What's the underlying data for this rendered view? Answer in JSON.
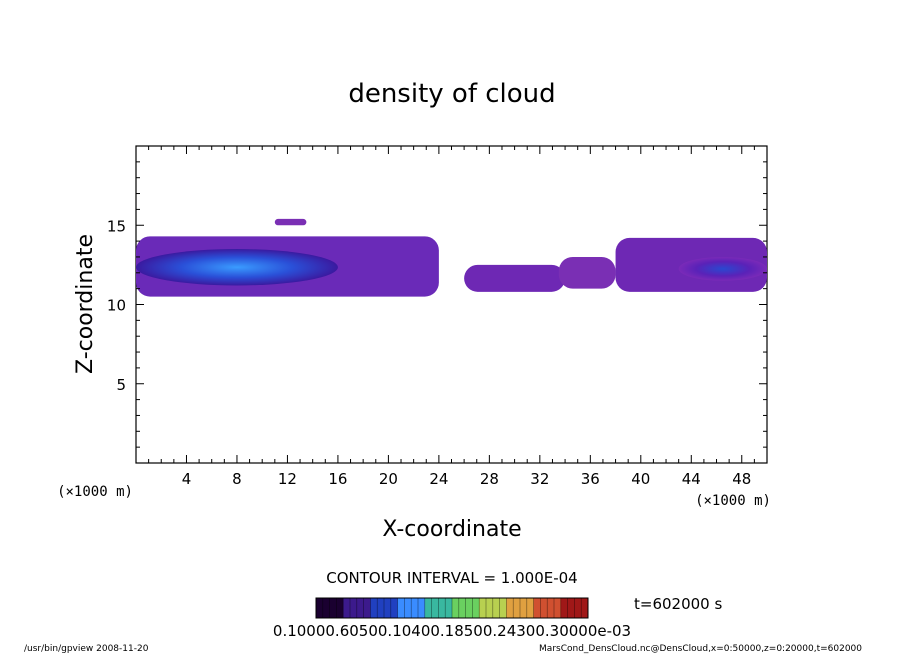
{
  "chart_data": {
    "type": "heatmap",
    "title": "density of cloud",
    "xlabel": "X-coordinate",
    "ylabel": "Z-coordinate",
    "x_unit": "(×1000 m)",
    "y_unit": "(×1000 m)",
    "xlim": [
      0,
      50
    ],
    "ylim": [
      0,
      20
    ],
    "x_ticks": [
      4,
      8,
      12,
      16,
      20,
      24,
      28,
      32,
      36,
      40,
      44,
      48
    ],
    "y_ticks": [
      5,
      10,
      15
    ],
    "contour_interval": "CONTOUR INTERVAL = 1.000E-04",
    "time": "t=602000 s",
    "colorbar_labels": "0.10000.60500.10400.18500.24300.30000e-03",
    "colorbar_colors": [
      "#1a0030",
      "#3c1a8c",
      "#2040c0",
      "#3a8cff",
      "#39b8a0",
      "#6ad060",
      "#b8d050",
      "#e0a040",
      "#d05030",
      "#a01818"
    ],
    "footer_left": "/usr/bin/gpview   2008-11-20",
    "footer_right": "MarsCond_DensCloud.nc@DensCloud,x=0:50000,z=0:20000,t=602000",
    "cloud_regions": [
      {
        "x": [
          0,
          24
        ],
        "z": [
          10.5,
          14.3
        ],
        "density": "high",
        "core_x": [
          0,
          16
        ],
        "core_z": [
          11.2,
          13.5
        ]
      },
      {
        "x": [
          11,
          13.5
        ],
        "z": [
          15,
          15.4
        ],
        "density": "low"
      },
      {
        "x": [
          26,
          34
        ],
        "z": [
          10.8,
          12.5
        ],
        "density": "medium"
      },
      {
        "x": [
          33.5,
          38
        ],
        "z": [
          11,
          13
        ],
        "density": "low"
      },
      {
        "x": [
          38,
          50
        ],
        "z": [
          10.8,
          14.2
        ],
        "density": "medium",
        "core_x": [
          43,
          50
        ],
        "core_z": [
          11.5,
          13
        ]
      }
    ]
  }
}
